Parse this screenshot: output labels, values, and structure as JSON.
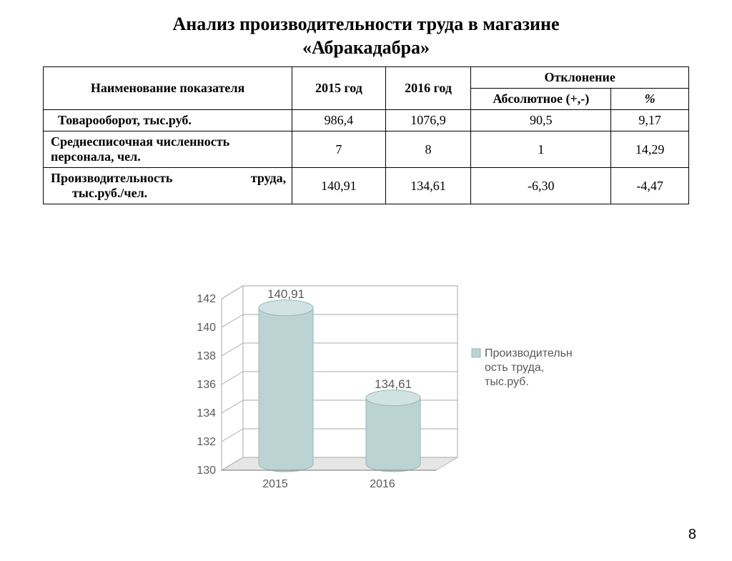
{
  "title_line1": "Анализ производительности труда в магазине",
  "title_line2": "«Абракадабра»",
  "table": {
    "headers": {
      "name": "Наименование показателя",
      "y2015": "2015 год",
      "y2016": "2016 год",
      "deviation": "Отклонение",
      "absolute": "Абсолютное (+,-)",
      "percent": "%"
    },
    "rows": [
      {
        "label": "Товарооборот, тыс.руб.",
        "y15": "986,4",
        "y16": "1076,9",
        "abs": "90,5",
        "pct": "9,17",
        "indent": true,
        "split": false
      },
      {
        "label": "Среднесписочная численность персонала, чел.",
        "y15": "7",
        "y16": "8",
        "abs": "1",
        "pct": "14,29",
        "indent": false,
        "split": false
      },
      {
        "label_l": "Производительность",
        "label_r": "труда,",
        "label_2": "тыс.руб./чел.",
        "y15": "140,91",
        "y16": "134,61",
        "abs": "-6,30",
        "pct": "-4,47",
        "indent": false,
        "split": true
      }
    ]
  },
  "chart": {
    "type": "3d-cylinder-bar",
    "categories": [
      "2015",
      "2016"
    ],
    "values": [
      140.91,
      134.61
    ],
    "value_labels": [
      "140,91",
      "134,61"
    ],
    "ylim": [
      130,
      142
    ],
    "ytick_step": 2,
    "yticks": [
      "130",
      "132",
      "134",
      "136",
      "138",
      "140",
      "142"
    ],
    "bar_color_fill": "#bcd3d4",
    "bar_color_edge": "#97b6b7",
    "bar_top_color": "#d1e2e3",
    "floor_color": "#e6e6e6",
    "floor_edge": "#b8b8b8",
    "wall_color": "#ffffff",
    "grid_color": "#a9a9a9",
    "axis_text_color": "#5a5a5a",
    "legend_text_color": "#5a5a5a",
    "legend_marker_color": "#bcd3d4",
    "label_fontsize": 16,
    "axis_fontfamily": "Arial",
    "legend_label_1": "Производительн",
    "legend_label_2": "ость труда,",
    "legend_label_3": "тыс.руб."
  },
  "page_number": "8"
}
